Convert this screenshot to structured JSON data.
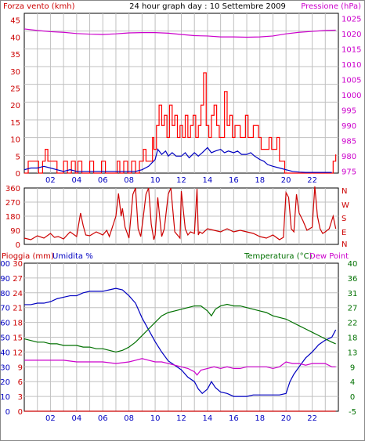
{
  "header": {
    "title": "24 hour graph day : 10 Settembre 2009",
    "left_label": "Forza vento (kmh)",
    "right_label": "Pressione (hPa)"
  },
  "wind_panel_labels": {
    "direction_letters": [
      "N",
      "W",
      "S",
      "E",
      "N"
    ]
  },
  "climate_panel_labels": {
    "rain": "Pioggia (mm)",
    "humidity": "Umidita %",
    "temperature": "Temperatura (°C)",
    "dewpoint": "Dew Point"
  },
  "colors": {
    "background": "#ffffff",
    "grid": "#c0c0c0",
    "wind_speed": "#ff0000",
    "wind_avg": "#0000c0",
    "pressure": "#cc00cc",
    "direction": "#cc0000",
    "humidity": "#0000c0",
    "temperature": "#007000",
    "dewpoint": "#cc00cc",
    "rain": "#cc0000",
    "temp_axis": "#007000"
  },
  "chart_data": [
    {
      "type": "line",
      "title": "24 hour graph day : 10 Settembre 2009",
      "x_ticks": [
        "02",
        "04",
        "06",
        "08",
        "10",
        "12",
        "14",
        "16",
        "18",
        "20",
        "22"
      ],
      "y_left_label": "Forza vento (kmh)",
      "y_left_ticks": [
        "0",
        "5",
        "10",
        "15",
        "20",
        "25",
        "30",
        "35",
        "40",
        "45"
      ],
      "y_left_range": [
        0,
        47
      ],
      "y_right_label": "Pressione (hPa)",
      "y_right_ticks": [
        "975",
        "980",
        "985",
        "990",
        "995",
        "1000",
        "1005",
        "1010",
        "1015",
        "1020",
        "1025"
      ],
      "y_right_range": [
        974.4,
        1026.6
      ],
      "series": [
        {
          "axis": "left",
          "style": "stepped",
          "x": [
            0,
            0.3,
            0.6,
            1.1,
            1.4,
            1.6,
            1.8,
            2.2,
            2.5,
            2.9,
            3.0,
            3.3,
            3.6,
            3.9,
            4.1,
            4.4,
            4.7,
            5.0,
            5.3,
            5.6,
            5.9,
            6.2,
            6.5,
            6.8,
            7.1,
            7.3,
            7.6,
            7.9,
            8.2,
            8.5,
            8.8,
            9.1,
            9.3,
            9.6,
            9.8,
            9.9,
            10.1,
            10.3,
            10.5,
            10.7,
            10.9,
            11.1,
            11.3,
            11.5,
            11.7,
            11.9,
            12.1,
            12.3,
            12.5,
            12.7,
            12.9,
            13.1,
            13.3,
            13.5,
            13.7,
            13.9,
            14.1,
            14.3,
            14.5,
            14.7,
            14.9,
            15.1,
            15.3,
            15.5,
            15.7,
            15.9,
            16.1,
            16.3,
            16.5,
            16.7,
            16.9,
            17.1,
            17.3,
            17.5,
            17.7,
            17.9,
            18.1,
            18.3,
            18.5,
            18.7,
            18.9,
            19.1,
            19.3,
            19.5,
            19.7,
            19.9,
            20.1,
            20.4,
            20.7,
            21.0,
            21.3,
            21.6,
            21.9,
            22.2,
            22.5,
            22.8,
            23.1,
            23.3,
            23.5,
            23.6,
            23.8
          ],
          "values": [
            0,
            3.5,
            3.5,
            0,
            3.5,
            7,
            3.5,
            3.5,
            0,
            0,
            3.5,
            0,
            3.5,
            0,
            3.5,
            0,
            0,
            3.5,
            0,
            0,
            3.5,
            0,
            0,
            0,
            3.5,
            0,
            3.5,
            0,
            3.5,
            0,
            3.5,
            7,
            3.5,
            3.5,
            10.5,
            7,
            14,
            20,
            14,
            17,
            10.5,
            20,
            14,
            17,
            10.5,
            14,
            10.5,
            17,
            10.5,
            14,
            17,
            10.5,
            14,
            20,
            29.5,
            14,
            10.5,
            17,
            20,
            14,
            10.5,
            10.5,
            24,
            14,
            17,
            10.5,
            14,
            14,
            10.5,
            10.5,
            17,
            10.5,
            10.5,
            14,
            14,
            10.5,
            7,
            7,
            7,
            10.5,
            7,
            7,
            10.5,
            3.5,
            3.5,
            0,
            0,
            0,
            0,
            0,
            0,
            0,
            0,
            0,
            0,
            0,
            0,
            0,
            0,
            3.5,
            5.5
          ]
        },
        {
          "axis": "left",
          "x": [
            0,
            0.5,
            1,
            1.5,
            2,
            2.5,
            3,
            3.5,
            4,
            4.5,
            5,
            5.5,
            6,
            6.5,
            7,
            7.5,
            8,
            8.5,
            9,
            9.5,
            10,
            10.2,
            10.5,
            10.8,
            11,
            11.3,
            11.6,
            12,
            12.3,
            12.6,
            13,
            13.3,
            13.6,
            14,
            14.3,
            14.6,
            15,
            15.3,
            15.6,
            16,
            16.3,
            16.6,
            17,
            17.3,
            17.6,
            18,
            18.3,
            18.6,
            19,
            19.5,
            20,
            20.5,
            21,
            21.5,
            22,
            22.5,
            23,
            23.5
          ],
          "values": [
            1,
            1.5,
            1.5,
            2,
            1.5,
            1,
            0.5,
            1,
            0.5,
            0.5,
            0.5,
            0.5,
            0.5,
            0.5,
            0.5,
            0.5,
            0.5,
            0.5,
            1,
            2,
            4,
            7,
            5.5,
            6.5,
            5,
            6,
            5,
            5,
            6,
            4.5,
            6,
            5,
            6,
            7.5,
            6,
            6.5,
            7,
            6,
            6.5,
            6,
            6.5,
            5.5,
            5.5,
            6,
            5,
            4,
            3.5,
            2.5,
            2,
            1.5,
            1,
            0.5,
            0.3,
            0.2,
            0.2,
            0.2,
            0.2,
            0.2
          ]
        },
        {
          "axis": "right",
          "x": [
            0,
            1,
            2,
            3,
            4,
            5,
            6,
            7,
            8,
            9,
            10,
            11,
            12,
            13,
            14,
            15,
            16,
            17,
            18,
            19,
            20,
            21,
            22,
            23,
            23.8
          ],
          "values": [
            1021.5,
            1021,
            1020.6,
            1020.4,
            1020,
            1019.8,
            1019.7,
            1019.9,
            1020.2,
            1020.3,
            1020.3,
            1020.1,
            1019.7,
            1019.3,
            1019.2,
            1018.9,
            1018.9,
            1018.8,
            1018.9,
            1019.2,
            1019.9,
            1020.4,
            1020.7,
            1021,
            1021.1
          ]
        }
      ]
    },
    {
      "type": "line",
      "x_ticks": [],
      "y_left_ticks": [
        "360",
        "270",
        "180",
        "90",
        "0"
      ],
      "y_left_range": [
        0,
        360
      ],
      "y_right_ticks": [
        "N",
        "W",
        "S",
        "E",
        "N"
      ],
      "series": [
        {
          "axis": "left",
          "x": [
            0,
            0.5,
            1,
            1.5,
            2,
            2.3,
            2.6,
            3,
            3.5,
            4,
            4.3,
            4.5,
            4.7,
            5,
            5.5,
            6,
            6.3,
            6.5,
            7,
            7.2,
            7.4,
            7.5,
            7.7,
            8,
            8.3,
            8.5,
            8.7,
            8.9,
            9.1,
            9.3,
            9.5,
            9.7,
            9.9,
            10,
            10.2,
            10.4,
            10.5,
            10.7,
            11,
            11.2,
            11.5,
            11.7,
            11.9,
            12,
            12.3,
            12.5,
            12.7,
            13,
            13.2,
            13.3,
            13.4,
            13.6,
            14,
            14.5,
            15,
            15.5,
            16,
            16.5,
            17,
            17.5,
            18,
            18.5,
            19,
            19.5,
            19.8,
            20,
            20.2,
            20.4,
            20.6,
            20.8,
            21,
            21.3,
            21.6,
            22,
            22.2,
            22.4,
            22.6,
            22.8,
            23,
            23.3,
            23.6,
            23.8
          ],
          "values": [
            40,
            30,
            55,
            40,
            70,
            45,
            50,
            35,
            80,
            50,
            200,
            120,
            60,
            55,
            80,
            60,
            90,
            50,
            180,
            325,
            180,
            230,
            110,
            40,
            320,
            360,
            100,
            50,
            180,
            320,
            360,
            130,
            30,
            60,
            300,
            130,
            50,
            100,
            320,
            360,
            80,
            60,
            40,
            340,
            100,
            60,
            80,
            70,
            355,
            60,
            80,
            70,
            100,
            90,
            80,
            100,
            80,
            90,
            80,
            70,
            50,
            40,
            60,
            30,
            45,
            330,
            300,
            100,
            80,
            320,
            200,
            150,
            90,
            110,
            370,
            180,
            100,
            70,
            80,
            100,
            180,
            100
          ]
        }
      ]
    },
    {
      "type": "line",
      "x_ticks": [
        "02",
        "04",
        "06",
        "08",
        "10",
        "12",
        "14",
        "16",
        "18",
        "20",
        "22"
      ],
      "y_left_label": "Pioggia (mm)",
      "y_left_ticks": [
        "0",
        "3",
        "6",
        "9",
        "12",
        "15",
        "18",
        "21",
        "24",
        "27",
        "30"
      ],
      "y_left_range": [
        0,
        30
      ],
      "y_humidity_label": "Umidita %",
      "y_humidity_ticks": [
        "0",
        "10",
        "20",
        "30",
        "40",
        "50",
        "60",
        "70",
        "80",
        "90",
        "100"
      ],
      "y_humidity_range": [
        0,
        100
      ],
      "y_right_label": "Temperatura (°C)",
      "y_right_ticks": [
        "-5",
        "0",
        "4",
        "9",
        "13",
        "18",
        "22",
        "27",
        "31",
        "36",
        "40"
      ],
      "y_right_range": [
        -5,
        40
      ],
      "y_right_label_2": "Dew Point",
      "series": [
        {
          "axis": "humidity",
          "x": [
            0,
            0.5,
            1,
            1.5,
            2,
            2.5,
            3,
            3.5,
            4,
            4.5,
            5,
            5.5,
            6,
            6.5,
            7,
            7.5,
            8,
            8.5,
            9,
            9.5,
            10,
            10.5,
            11,
            11.5,
            12,
            12.5,
            13,
            13.3,
            13.6,
            14,
            14.3,
            14.6,
            15,
            15.5,
            16,
            16.5,
            17,
            17.5,
            18,
            18.5,
            19,
            19.5,
            20,
            20.3,
            20.6,
            21,
            21.5,
            22,
            22.5,
            23,
            23.5,
            23.8
          ],
          "values": [
            72,
            72,
            73,
            73,
            74,
            76,
            77,
            78,
            78,
            80,
            81,
            81,
            81,
            82,
            83,
            82,
            78,
            73,
            63,
            55,
            47,
            40,
            34,
            31,
            28,
            23,
            20,
            15,
            12,
            15,
            20,
            16,
            13,
            12,
            10,
            10,
            10,
            11,
            11,
            11,
            11,
            11,
            12,
            20,
            25,
            30,
            36,
            40,
            45,
            48,
            50,
            55
          ]
        },
        {
          "axis": "right",
          "x": [
            0,
            0.5,
            1,
            1.5,
            2,
            2.5,
            3,
            3.5,
            4,
            4.5,
            5,
            5.5,
            6,
            6.5,
            7,
            7.5,
            8,
            8.5,
            9,
            9.5,
            10,
            10.5,
            11,
            11.5,
            12,
            12.5,
            13,
            13.5,
            14,
            14.3,
            14.6,
            15,
            15.5,
            16,
            16.5,
            17,
            17.5,
            18,
            18.5,
            19,
            19.5,
            20,
            20.5,
            21,
            21.5,
            22,
            22.5,
            23,
            23.5,
            23.8
          ],
          "values": [
            17,
            16.5,
            16,
            16,
            15.5,
            15.5,
            15,
            15,
            15,
            14.5,
            14.5,
            14,
            14,
            13.5,
            13,
            13.5,
            14.5,
            16,
            18,
            20,
            22,
            24,
            25,
            25.5,
            26,
            26.5,
            27,
            27,
            25.5,
            24,
            26,
            27,
            27.5,
            27,
            27,
            26.5,
            26,
            25.5,
            25,
            24,
            23.5,
            23,
            22,
            21,
            20,
            19,
            18,
            17,
            16,
            15.5
          ]
        },
        {
          "axis": "right",
          "x": [
            0,
            1,
            2,
            3,
            4,
            5,
            6,
            7,
            8,
            8.5,
            9,
            9.5,
            10,
            10.5,
            11,
            11.5,
            12,
            12.5,
            13,
            13.2,
            13.5,
            14,
            14.5,
            15,
            15.5,
            16,
            16.5,
            17,
            17.5,
            18,
            18.5,
            19,
            19.5,
            20,
            20.5,
            21,
            21.5,
            22,
            22.5,
            23,
            23.5,
            23.8
          ],
          "values": [
            10.5,
            10.5,
            10.5,
            10.5,
            10,
            10,
            10,
            9.5,
            10,
            10.5,
            11,
            10.5,
            10,
            10,
            9.5,
            9,
            8.5,
            8,
            7,
            6,
            7.5,
            8,
            8.5,
            8,
            8.5,
            8,
            8,
            8.5,
            8.5,
            8.5,
            8.5,
            8,
            8.5,
            10,
            9.5,
            9.5,
            9,
            9.5,
            9.5,
            9.5,
            8.5,
            8.5
          ]
        },
        {
          "axis": "left",
          "x": [
            0,
            23.8
          ],
          "values": [
            0,
            0
          ]
        }
      ]
    }
  ]
}
